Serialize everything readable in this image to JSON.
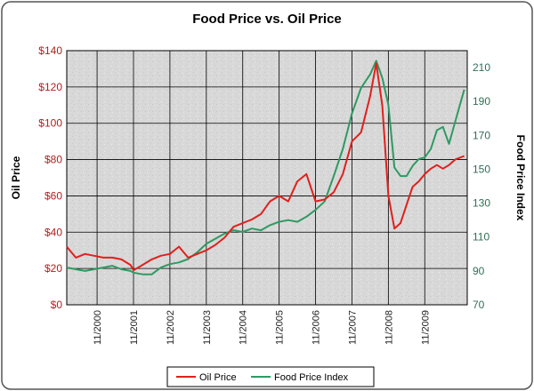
{
  "chart_data": {
    "type": "line",
    "title": "Food Price vs. Oil Price",
    "ylabel_left": "Oil Price",
    "ylabel_right": "Food Price Index",
    "y_left_range": [
      0,
      140
    ],
    "y_left_ticks": [
      "$0",
      "$20",
      "$40",
      "$60",
      "$80",
      "$100",
      "$120",
      "$140"
    ],
    "y_right_range": [
      70,
      220
    ],
    "y_right_ticks": [
      "70",
      "90",
      "110",
      "130",
      "150",
      "170",
      "190",
      "210"
    ],
    "x_ticks": [
      "11/2000",
      "11/2001",
      "11/2002",
      "11/2003",
      "11/2004",
      "11/2005",
      "11/2006",
      "11/2007",
      "11/2008",
      "11/2009"
    ],
    "grid": true,
    "legend_position": "bottom",
    "colors": {
      "oil": "#e0201c",
      "food": "#2e9a62"
    },
    "series": [
      {
        "name": "Oil Price",
        "axis": "left",
        "x": [
          "2000-01",
          "2000-04",
          "2000-07",
          "2000-10",
          "2001-01",
          "2001-04",
          "2001-07",
          "2001-10",
          "2001-11",
          "2002-02",
          "2002-05",
          "2002-08",
          "2002-11",
          "2003-02",
          "2003-05",
          "2003-08",
          "2003-11",
          "2004-02",
          "2004-05",
          "2004-08",
          "2004-11",
          "2005-02",
          "2005-05",
          "2005-08",
          "2005-11",
          "2006-02",
          "2006-05",
          "2006-08",
          "2006-11",
          "2007-02",
          "2007-05",
          "2007-08",
          "2007-11",
          "2008-02",
          "2008-05",
          "2008-07",
          "2008-09",
          "2008-11",
          "2009-01",
          "2009-03",
          "2009-05",
          "2009-07",
          "2009-09",
          "2009-11",
          "2010-01",
          "2010-03",
          "2010-05",
          "2010-07",
          "2010-09",
          "2010-12"
        ],
        "values": [
          32,
          26,
          28,
          27,
          26,
          26,
          25,
          22,
          19,
          22,
          25,
          27,
          28,
          32,
          26,
          28,
          30,
          33,
          37,
          43,
          45,
          47,
          50,
          57,
          60,
          57,
          68,
          72,
          57,
          58,
          62,
          72,
          90,
          95,
          115,
          133,
          110,
          60,
          42,
          45,
          55,
          65,
          68,
          72,
          75,
          77,
          75,
          77,
          80,
          82
        ]
      },
      {
        "name": "Food Price Index",
        "axis": "right",
        "x": [
          "2000-01",
          "2000-04",
          "2000-07",
          "2000-10",
          "2001-01",
          "2001-04",
          "2001-07",
          "2001-10",
          "2001-11",
          "2002-02",
          "2002-05",
          "2002-08",
          "2002-11",
          "2003-02",
          "2003-05",
          "2003-08",
          "2003-11",
          "2004-02",
          "2004-05",
          "2004-08",
          "2004-11",
          "2005-02",
          "2005-05",
          "2005-08",
          "2005-11",
          "2006-02",
          "2006-05",
          "2006-08",
          "2006-11",
          "2007-02",
          "2007-05",
          "2007-08",
          "2007-11",
          "2008-02",
          "2008-05",
          "2008-07",
          "2008-09",
          "2008-11",
          "2009-01",
          "2009-03",
          "2009-05",
          "2009-07",
          "2009-09",
          "2009-11",
          "2010-01",
          "2010-03",
          "2010-05",
          "2010-07",
          "2010-09",
          "2010-12"
        ],
        "values": [
          92,
          91,
          90,
          91,
          92,
          93,
          91,
          90,
          89,
          88,
          88,
          92,
          94,
          95,
          97,
          101,
          106,
          109,
          112,
          114,
          113,
          115,
          114,
          117,
          119,
          120,
          119,
          122,
          126,
          131,
          146,
          162,
          183,
          198,
          206,
          214,
          204,
          188,
          151,
          146,
          146,
          152,
          156,
          157,
          162,
          173,
          175,
          165,
          178,
          197
        ]
      }
    ]
  }
}
